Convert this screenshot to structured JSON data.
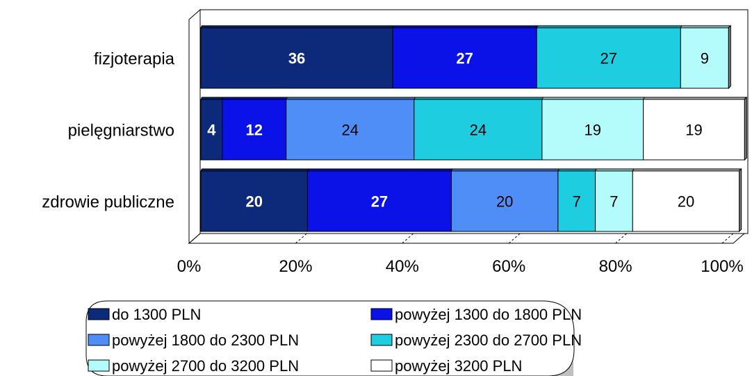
{
  "chart_data": {
    "type": "bar",
    "orientation": "horizontal",
    "stacked": "percent",
    "title": "",
    "xlabel": "",
    "ylabel": "",
    "xlim": [
      0,
      100
    ],
    "categories": [
      "fizjoterapia",
      "pielęgniarstwo",
      "zdrowie publiczne"
    ],
    "series": [
      {
        "name": "do 1300 PLN",
        "color": "#0d2a7a",
        "label_color": "#ffffff",
        "label_bold": true,
        "values": [
          36,
          4,
          20
        ]
      },
      {
        "name": "powyżej 1300 do 1800 PLN",
        "color": "#0a12e8",
        "label_color": "#ffffff",
        "label_bold": true,
        "values": [
          27,
          12,
          27
        ]
      },
      {
        "name": "powyżej 1800 do 2300 PLN",
        "color": "#4f8ef7",
        "label_color": "#000000",
        "label_bold": false,
        "values": [
          null,
          24,
          20
        ]
      },
      {
        "name": "powyżej 2300 do 2700 PLN",
        "color": "#1ecddf",
        "label_color": "#000000",
        "label_bold": false,
        "values": [
          27,
          24,
          7
        ]
      },
      {
        "name": "powyżej 2700 do 3200 PLN",
        "color": "#b4fbfb",
        "label_color": "#000000",
        "label_bold": false,
        "values": [
          9,
          19,
          7
        ]
      },
      {
        "name": "powyżej 3200 PLN",
        "color": "#ffffff",
        "label_color": "#000000",
        "label_bold": false,
        "values": [
          null,
          19,
          20
        ]
      }
    ],
    "ticks": [
      "0%",
      "20%",
      "40%",
      "60%",
      "80%",
      "100%"
    ],
    "legend_position": "bottom"
  }
}
